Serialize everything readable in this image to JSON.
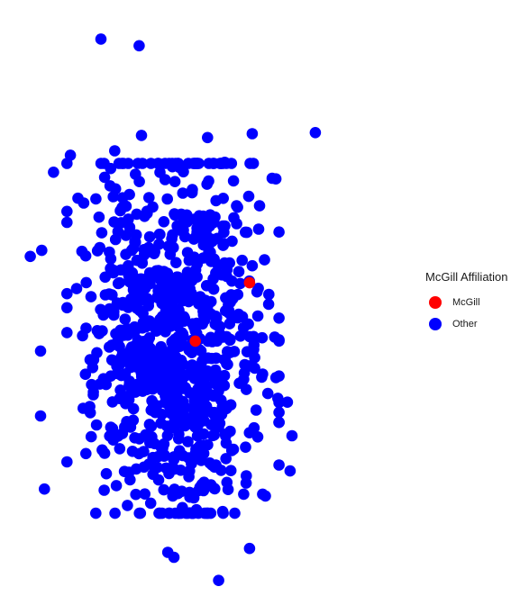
{
  "chart_data": {
    "type": "scatter",
    "title": "",
    "xlabel": "",
    "ylabel": "",
    "axes_visible": false,
    "grid": false,
    "xlim": [
      0,
      100
    ],
    "ylim": [
      0,
      100
    ],
    "legend": {
      "title": "McGill Affiliation",
      "placement": "right",
      "entries": [
        {
          "name": "McGill",
          "color": "#ff0000"
        },
        {
          "name": "Other",
          "color": "#0000ff"
        }
      ]
    },
    "series": [
      {
        "name": "Other",
        "color": "#0000ff",
        "generated_count": 900,
        "points": [
          [
            21.7,
            97.8
          ],
          [
            31.7,
            96.6
          ],
          [
            77.8,
            80.8
          ],
          [
            61.3,
            80.6
          ],
          [
            49.6,
            79.9
          ],
          [
            32.3,
            80.3
          ],
          [
            25.3,
            77.5
          ],
          [
            13.7,
            76.7
          ],
          [
            9.3,
            73.6
          ],
          [
            3.2,
            58.3
          ],
          [
            6.2,
            59.4
          ],
          [
            5.9,
            41.1
          ],
          [
            5.9,
            29.3
          ],
          [
            6.9,
            16.0
          ],
          [
            52.5,
            -0.6
          ],
          [
            40.8,
            3.6
          ],
          [
            39.2,
            4.5
          ],
          [
            60.6,
            5.2
          ],
          [
            71.2,
            19.3
          ],
          [
            71.7,
            25.7
          ],
          [
            70.5,
            31.8
          ],
          [
            68.0,
            32.5
          ],
          [
            64.0,
            36.9
          ],
          [
            63.9,
            43.5
          ],
          [
            65.6,
            49.6
          ],
          [
            61.3,
            56.6
          ],
          [
            63.2,
            67.5
          ],
          [
            66.5,
            72.5
          ],
          [
            54.1,
            75.4
          ]
        ],
        "bulk_rule": {
          "seed": 7,
          "x_mean": 40.9,
          "x_sd": 11.0,
          "x_min": 12.8,
          "x_max": 68.3,
          "y_mean": 44.1,
          "y_sd": 17.5,
          "y_min": 11.6,
          "y_max": 75.2
        }
      },
      {
        "name": "McGill",
        "color": "#ff0000",
        "points": [
          [
            60.6,
            53.5
          ],
          [
            46.4,
            42.9
          ]
        ]
      }
    ]
  }
}
